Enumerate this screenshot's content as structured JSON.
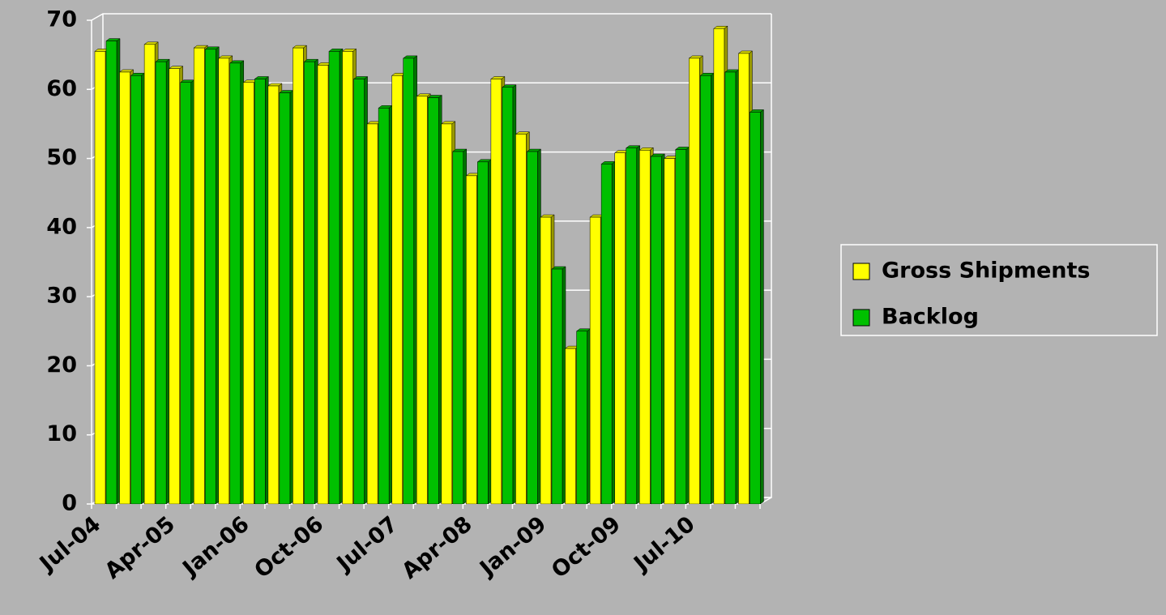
{
  "chart_data": {
    "type": "bar",
    "categories": [
      "Jul-04",
      null,
      null,
      "Apr-05",
      null,
      null,
      "Jan-06",
      null,
      null,
      "Oct-06",
      null,
      null,
      "Jul-07",
      null,
      null,
      "Apr-08",
      null,
      null,
      "Jan-09",
      null,
      null,
      "Oct-09",
      null,
      null,
      "Jul-10",
      null,
      null
    ],
    "series": [
      {
        "name": "Gross Shipments",
        "color": "#ffff00",
        "values": [
          65.5,
          62.5,
          66.5,
          63,
          66,
          64.5,
          61,
          60.5,
          66,
          63.5,
          65.5,
          55,
          62,
          59,
          55,
          47.5,
          61.5,
          53.5,
          41.5,
          22.5,
          41.5,
          50.8,
          51.2,
          50,
          64.5,
          68.8,
          65.2
        ]
      },
      {
        "name": "Backlog",
        "color": "#00c000",
        "values": [
          67,
          62,
          64,
          61,
          65.8,
          63.8,
          61.5,
          59.5,
          64,
          65.5,
          61.5,
          57.3,
          64.5,
          58.8,
          51,
          49.5,
          60.3,
          51,
          34,
          25,
          49.2,
          51.5,
          50.3,
          51.3,
          62,
          62.5,
          56.7
        ]
      }
    ],
    "ylim": [
      0,
      70
    ],
    "yticks": [
      0,
      10,
      20,
      30,
      40,
      50,
      60,
      70
    ],
    "grid": true,
    "legend": "right"
  }
}
